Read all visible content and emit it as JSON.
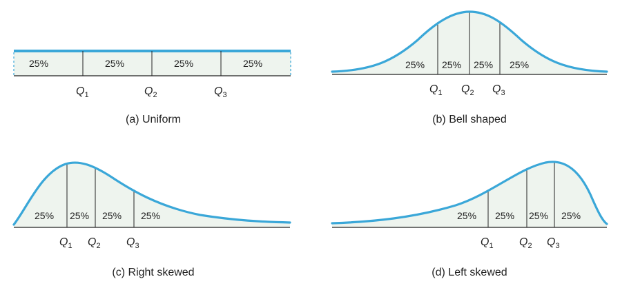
{
  "colors": {
    "curve": "#3aa7d8",
    "fill": "#eef4ee",
    "line": "#222222"
  },
  "panels": {
    "uniform": {
      "caption": "(a)  Uniform",
      "percents": [
        "25%",
        "25%",
        "25%",
        "25%"
      ],
      "quartiles": [
        {
          "sym": "Q",
          "sub": "1"
        },
        {
          "sym": "Q",
          "sub": "2"
        },
        {
          "sym": "Q",
          "sub": "3"
        }
      ]
    },
    "bell": {
      "caption": "(b)  Bell shaped",
      "percents": [
        "25%",
        "25%",
        "25%",
        "25%"
      ],
      "quartiles": [
        {
          "sym": "Q",
          "sub": "1"
        },
        {
          "sym": "Q",
          "sub": "2"
        },
        {
          "sym": "Q",
          "sub": "3"
        }
      ]
    },
    "right": {
      "caption": "(c)  Right skewed",
      "percents": [
        "25%",
        "25%",
        "25%",
        "25%"
      ],
      "quartiles": [
        {
          "sym": "Q",
          "sub": "1"
        },
        {
          "sym": "Q",
          "sub": "2"
        },
        {
          "sym": "Q",
          "sub": "3"
        }
      ]
    },
    "left": {
      "caption": "(d)  Left skewed",
      "percents": [
        "25%",
        "25%",
        "25%",
        "25%"
      ],
      "quartiles": [
        {
          "sym": "Q",
          "sub": "1"
        },
        {
          "sym": "Q",
          "sub": "2"
        },
        {
          "sym": "Q",
          "sub": "3"
        }
      ]
    }
  }
}
